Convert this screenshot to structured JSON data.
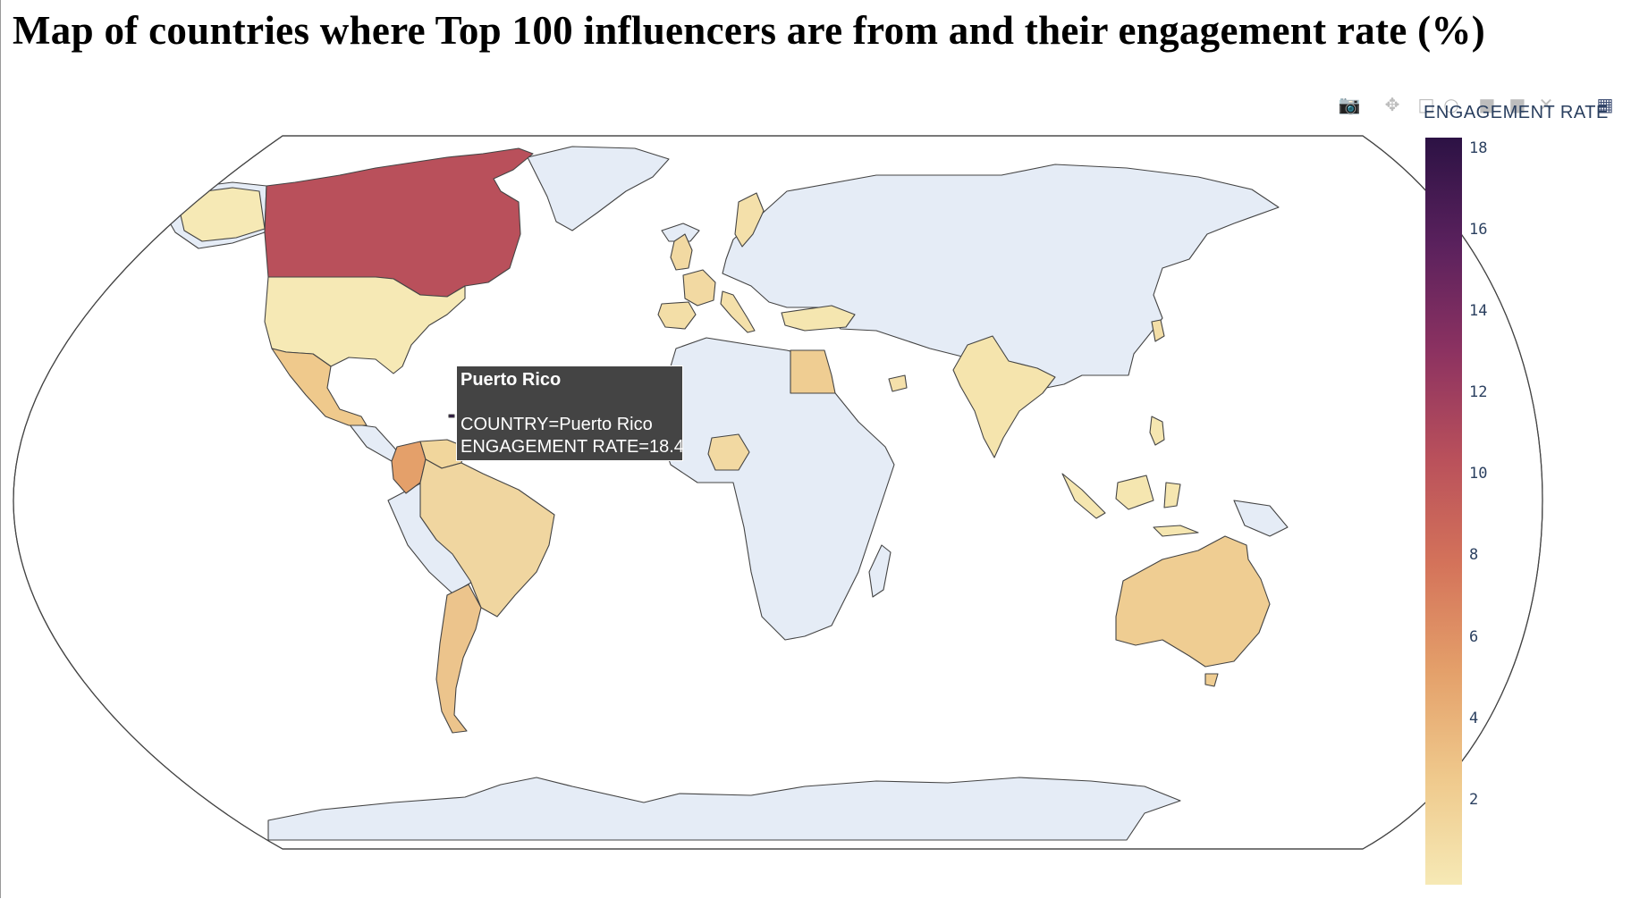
{
  "title": "Map of countries where Top 100 influencers are from and their engagement rate (%)",
  "colorbar": {
    "title": "ENGAGEMENT RATE",
    "ticks": [
      "18",
      "16",
      "14",
      "12",
      "10",
      "8",
      "6",
      "4",
      "2"
    ],
    "range": [
      0,
      18.4
    ],
    "colors": [
      "#f6e9b5",
      "#efc98c",
      "#e4a06a",
      "#d4735a",
      "#b9505b",
      "#8c3261",
      "#5a215d",
      "#2c1244"
    ]
  },
  "modebar": {
    "buttons": [
      "camera-icon",
      "pan-icon",
      "box-select-icon",
      "lasso-icon",
      "zoom-in-icon",
      "zoom-out-icon",
      "reset-icon",
      "plotly-logo-icon"
    ]
  },
  "tooltip": {
    "name": "Puerto Rico",
    "line1": "COUNTRY=Puerto Rico",
    "line2": "ENGAGEMENT RATE=18.4"
  },
  "map": {
    "projection": "natural earth",
    "no_data_color": "#e5ecf6",
    "countries": [
      {
        "name": "Canada",
        "value": 8.6
      },
      {
        "name": "United States",
        "value": 1.3
      },
      {
        "name": "Mexico",
        "value": 3.0
      },
      {
        "name": "Colombia",
        "value": 5.4
      },
      {
        "name": "Venezuela",
        "value": 1.5
      },
      {
        "name": "Brazil",
        "value": 2.4
      },
      {
        "name": "Argentina",
        "value": 3.4
      },
      {
        "name": "United Kingdom",
        "value": 2.0
      },
      {
        "name": "France",
        "value": 2.0
      },
      {
        "name": "Spain",
        "value": 1.8
      },
      {
        "name": "Italy",
        "value": 1.6
      },
      {
        "name": "Sweden",
        "value": 1.6
      },
      {
        "name": "Turkey",
        "value": 1.1
      },
      {
        "name": "Egypt",
        "value": 2.6
      },
      {
        "name": "Nigeria",
        "value": 2.0
      },
      {
        "name": "United Arab Emirates",
        "value": 1.6
      },
      {
        "name": "India",
        "value": 1.4
      },
      {
        "name": "Indonesia",
        "value": 1.2
      },
      {
        "name": "Philippines",
        "value": 1.2
      },
      {
        "name": "South Korea",
        "value": 1.8
      },
      {
        "name": "Australia",
        "value": 2.6
      },
      {
        "name": "Puerto Rico",
        "value": 18.4
      }
    ]
  }
}
